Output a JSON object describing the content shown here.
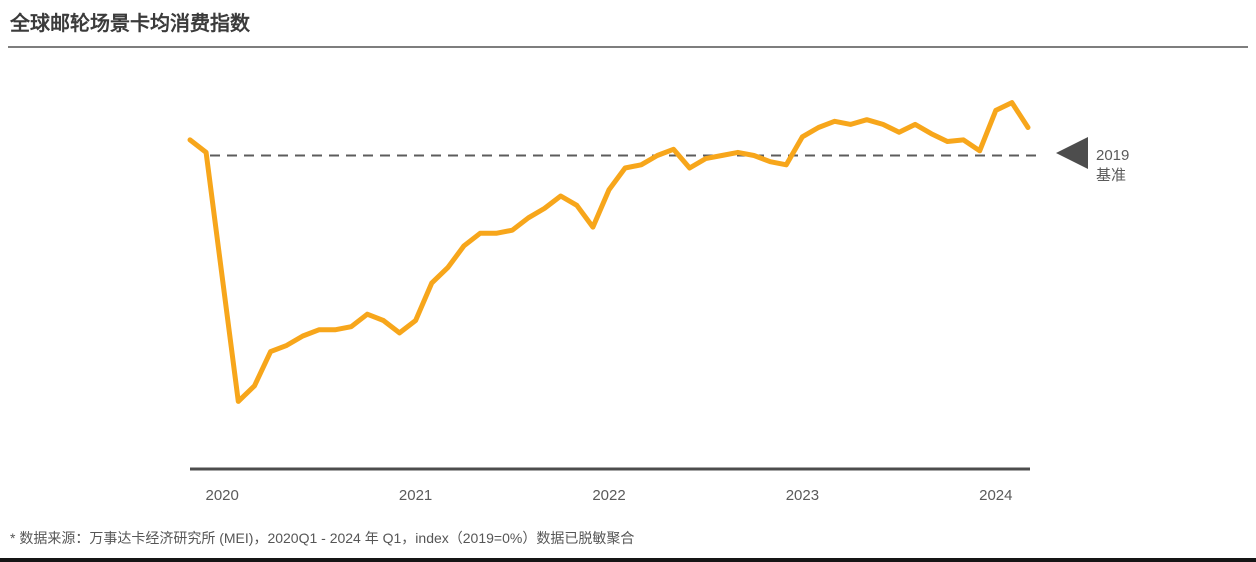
{
  "page": {
    "title": "全球邮轮场景卡均消费指数",
    "footnote": "* 数据来源：万事达卡经济研究所 (MEI)，2020Q1 - 2024 年 Q1，index（2019=0%）数据已脱敏聚合"
  },
  "annotation": {
    "line1": "2019",
    "line2": "基准",
    "marker": "left-pointing-triangle"
  },
  "colors": {
    "line": "#F7A61B",
    "baseline_dash": "#5c5c5c",
    "axis": "#4d4d4d",
    "tick_text": "#5a5a5a",
    "title_text": "#3b3b3b",
    "bottom_bar": "#151515"
  },
  "chart_data": {
    "type": "line",
    "title": "全球邮轮场景卡均消费指数",
    "xlabel": "",
    "ylabel": "index（2019=0%）",
    "unit": "%",
    "ylim": [
      -90,
      25
    ],
    "grid": false,
    "legend_position": "none",
    "baseline": {
      "value": 0,
      "label": "2019 基准",
      "style": "dashed"
    },
    "x_tick_labels": [
      "2020",
      "2021",
      "2022",
      "2023",
      "2024"
    ],
    "x": [
      "2019-11",
      "2019-12",
      "2020-01",
      "2020-02",
      "2020-03",
      "2020-04",
      "2020-05",
      "2020-06",
      "2020-07",
      "2020-08",
      "2020-09",
      "2020-10",
      "2020-11",
      "2020-12",
      "2021-01",
      "2021-02",
      "2021-03",
      "2021-04",
      "2021-05",
      "2021-06",
      "2021-07",
      "2021-08",
      "2021-09",
      "2021-10",
      "2021-11",
      "2021-12",
      "2022-01",
      "2022-02",
      "2022-03",
      "2022-04",
      "2022-05",
      "2022-06",
      "2022-07",
      "2022-08",
      "2022-09",
      "2022-10",
      "2022-11",
      "2022-12",
      "2023-01",
      "2023-02",
      "2023-03",
      "2023-04",
      "2023-05",
      "2023-06",
      "2023-07",
      "2023-08",
      "2023-09",
      "2023-10",
      "2023-11",
      "2023-12",
      "2024-01",
      "2024-02",
      "2024-03"
    ],
    "series": [
      {
        "name": "全球邮轮场景卡均消费指数（相对2019基准，%）",
        "values": [
          5,
          1,
          -39,
          -79,
          -74,
          -63,
          -61,
          -58,
          -56,
          -56,
          -55,
          -51,
          -53,
          -57,
          -53,
          -41,
          -36,
          -29,
          -25,
          -25,
          -24,
          -20,
          -17,
          -13,
          -16,
          -23,
          -11,
          -4,
          -3,
          0,
          2,
          -4,
          -1,
          0,
          1,
          0,
          -2,
          -3,
          6,
          9,
          11,
          10,
          11.5,
          10,
          7.5,
          10,
          7,
          4.5,
          5,
          1.5,
          14.5,
          17,
          9
        ]
      }
    ]
  }
}
